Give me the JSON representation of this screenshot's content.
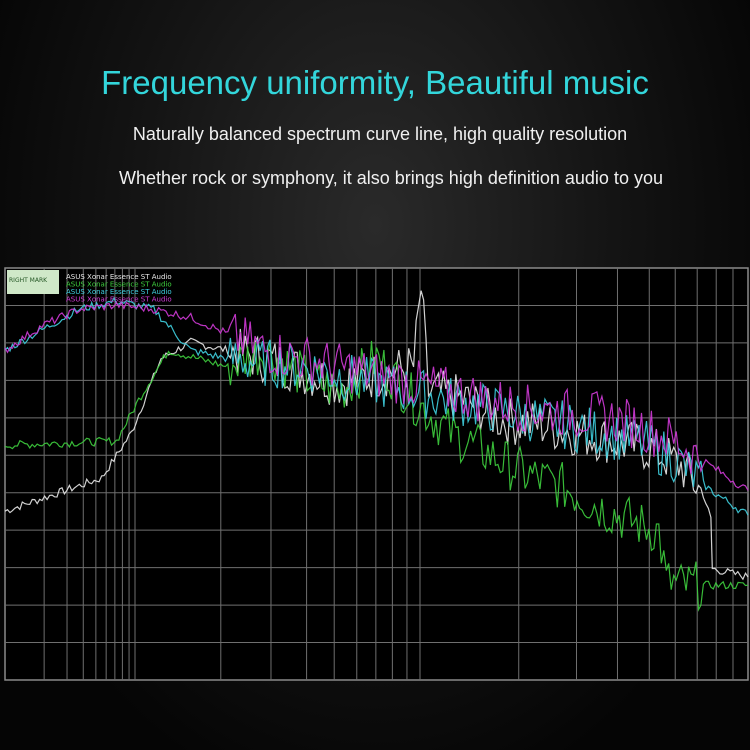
{
  "header": {
    "title": "Frequency uniformity, Beautiful music",
    "subtitle_1": "Naturally balanced spectrum curve line, high quality resolution",
    "subtitle_2": "Whether rock or symphony, it also brings high definition audio to you"
  },
  "colors": {
    "title": "#33d6db",
    "grid": "#6f6f6f",
    "background": "#000000"
  },
  "chart_data": {
    "type": "line",
    "title": "",
    "xlabel": "",
    "ylabel": "",
    "x_scale": "log",
    "grid": true,
    "legend_placement": "top-left",
    "logo_text": "RIGHT MARK",
    "series": [
      {
        "name": "ASUS Xonar Essence ST Audio",
        "color": "#e8e8e8",
        "points": [
          [
            0,
            41
          ],
          [
            13,
            49
          ],
          [
            17,
            60
          ],
          [
            21,
            78
          ],
          [
            25,
            82
          ],
          [
            30,
            80
          ],
          [
            35,
            78
          ],
          [
            40,
            75
          ],
          [
            45,
            72
          ],
          [
            50,
            74
          ],
          [
            55,
            76
          ],
          [
            56,
            95
          ],
          [
            57,
            70
          ],
          [
            62,
            68
          ],
          [
            67,
            63
          ],
          [
            72,
            62
          ],
          [
            77,
            60
          ],
          [
            82,
            58
          ],
          [
            87,
            56
          ],
          [
            91,
            52
          ],
          [
            94,
            45
          ],
          [
            95,
            39
          ],
          [
            95.2,
            27
          ],
          [
            100,
            25
          ]
        ]
      },
      {
        "name": "ASUS Xonar Essence ST Audio",
        "color": "#3ecf3e",
        "points": [
          [
            0,
            57
          ],
          [
            15,
            58
          ],
          [
            18,
            68
          ],
          [
            22,
            80
          ],
          [
            26,
            78
          ],
          [
            30,
            76
          ],
          [
            35,
            80
          ],
          [
            40,
            74
          ],
          [
            45,
            70
          ],
          [
            50,
            78
          ],
          [
            55,
            68
          ],
          [
            60,
            60
          ],
          [
            65,
            55
          ],
          [
            70,
            50
          ],
          [
            75,
            47
          ],
          [
            80,
            42
          ],
          [
            85,
            38
          ],
          [
            88,
            36
          ],
          [
            89,
            24
          ],
          [
            91,
            23
          ],
          [
            100,
            23
          ]
        ]
      },
      {
        "name": "ASUS Xonar Essence ST Audio",
        "color": "#3fd0e0",
        "points": [
          [
            0,
            80
          ],
          [
            5,
            85
          ],
          [
            10,
            90
          ],
          [
            15,
            92
          ],
          [
            20,
            90
          ],
          [
            25,
            80
          ],
          [
            30,
            78
          ],
          [
            35,
            77
          ],
          [
            40,
            76
          ],
          [
            45,
            74
          ],
          [
            50,
            72
          ],
          [
            55,
            70
          ],
          [
            60,
            68
          ],
          [
            65,
            66
          ],
          [
            70,
            64
          ],
          [
            75,
            62
          ],
          [
            80,
            60
          ],
          [
            85,
            58
          ],
          [
            90,
            54
          ],
          [
            95,
            46
          ],
          [
            100,
            40
          ]
        ]
      },
      {
        "name": "ASUS Xonar Essence ST Audio",
        "color": "#d23ad8",
        "points": [
          [
            0,
            80
          ],
          [
            5,
            86
          ],
          [
            10,
            90
          ],
          [
            15,
            91
          ],
          [
            20,
            90
          ],
          [
            25,
            88
          ],
          [
            30,
            84
          ],
          [
            35,
            80
          ],
          [
            40,
            78
          ],
          [
            45,
            76
          ],
          [
            50,
            74
          ],
          [
            55,
            72
          ],
          [
            60,
            70
          ],
          [
            65,
            68
          ],
          [
            70,
            66
          ],
          [
            75,
            65
          ],
          [
            80,
            64
          ],
          [
            85,
            62
          ],
          [
            90,
            58
          ],
          [
            95,
            52
          ],
          [
            100,
            46
          ]
        ]
      }
    ]
  }
}
